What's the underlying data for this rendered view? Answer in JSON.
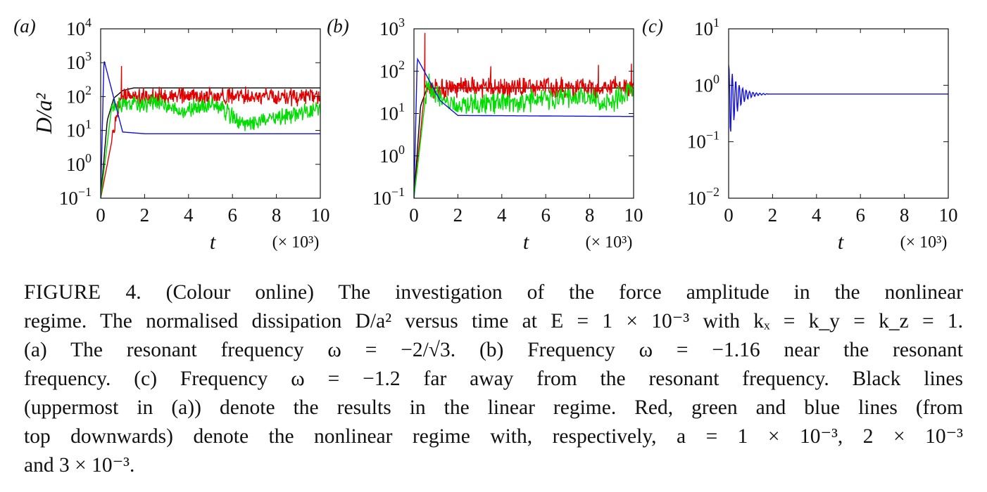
{
  "chart_data": [
    {
      "type": "line",
      "panel_label": "(a)",
      "ylabel": "D/a²",
      "xlabel": "t",
      "x_multiplier": "(× 10³)",
      "xlim": [
        0,
        10
      ],
      "xticks": [
        "0",
        "2",
        "4",
        "6",
        "8",
        "10"
      ],
      "yscale": "log",
      "ylim": [
        0.1,
        10000
      ],
      "yticks": [
        {
          "base": "10",
          "exp": "4"
        },
        {
          "base": "10",
          "exp": "3"
        },
        {
          "base": "10",
          "exp": "2"
        },
        {
          "base": "10",
          "exp": "1"
        },
        {
          "base": "10",
          "exp": "0"
        },
        {
          "base": "10",
          "exp": "−1"
        }
      ],
      "series": [
        {
          "color": "#000000",
          "kind": "saturating",
          "x": [
            0,
            0.3,
            0.6,
            1.0,
            1.5,
            10
          ],
          "y": [
            0.1,
            20,
            90,
            150,
            180,
            180
          ]
        },
        {
          "color": "#e00000",
          "kind": "noisy",
          "x": [
            0,
            0.9,
            10
          ],
          "y": [
            0.1,
            100,
            100
          ],
          "spikes": [
            [
              0.95,
              800
            ]
          ]
        },
        {
          "color": "#00dd00",
          "kind": "noisy",
          "x": [
            0,
            0.5,
            2.7,
            3.5,
            5.2,
            6.5,
            9.5,
            10
          ],
          "y": [
            0.1,
            50,
            70,
            35,
            60,
            14,
            40,
            45
          ]
        },
        {
          "color": "#1010e0",
          "kind": "settling",
          "x": [
            0,
            0.15,
            1.0,
            2.0,
            10
          ],
          "y": [
            0.1,
            1200,
            9,
            8,
            8
          ]
        }
      ]
    },
    {
      "type": "line",
      "panel_label": "(b)",
      "xlabel": "t",
      "x_multiplier": "(× 10³)",
      "xlim": [
        0,
        10
      ],
      "xticks": [
        "0",
        "2",
        "4",
        "6",
        "8",
        "10"
      ],
      "yscale": "log",
      "ylim": [
        0.1,
        1000
      ],
      "yticks": [
        {
          "base": "10",
          "exp": "3"
        },
        {
          "base": "10",
          "exp": "2"
        },
        {
          "base": "10",
          "exp": "1"
        },
        {
          "base": "10",
          "exp": "0"
        },
        {
          "base": "10",
          "exp": "−1"
        }
      ],
      "series": [
        {
          "color": "#000000",
          "kind": "saturating",
          "x": [
            0,
            0.3,
            0.6,
            1.0,
            10
          ],
          "y": [
            0.1,
            15,
            40,
            40,
            40
          ]
        },
        {
          "color": "#e00000",
          "kind": "noisy",
          "x": [
            0,
            0.5,
            10
          ],
          "y": [
            0.1,
            40,
            40
          ],
          "spikes": [
            [
              0.5,
              800
            ],
            [
              3.5,
              130
            ],
            [
              8.4,
              140
            ],
            [
              9.9,
              150
            ]
          ]
        },
        {
          "color": "#00dd00",
          "kind": "noisy",
          "x": [
            0,
            0.6,
            1.6,
            8.3,
            8.6,
            10
          ],
          "y": [
            0.1,
            50,
            15,
            25,
            15,
            35
          ]
        },
        {
          "color": "#1010e0",
          "kind": "settling",
          "x": [
            0,
            0.15,
            1.2,
            2.0,
            10
          ],
          "y": [
            0.1,
            200,
            20,
            9,
            8.5
          ]
        }
      ]
    },
    {
      "type": "line",
      "panel_label": "(c)",
      "xlabel": "t",
      "x_multiplier": "(× 10³)",
      "xlim": [
        0,
        10
      ],
      "xticks": [
        "0",
        "2",
        "4",
        "6",
        "8",
        "10"
      ],
      "yscale": "log",
      "ylim": [
        0.01,
        10
      ],
      "yticks": [
        {
          "base": "10",
          "exp": "1"
        },
        {
          "base": "10",
          "exp": "0"
        },
        {
          "base": "10",
          "exp": "−1"
        },
        {
          "base": "10",
          "exp": "−2"
        }
      ],
      "series": [
        {
          "color": "#1010e0",
          "kind": "damped_oscillation",
          "x": [
            0,
            2,
            10
          ],
          "y": [
            0.7,
            0.7,
            0.7
          ],
          "peak": 2.5,
          "trough": 0.09,
          "decay_until": 1.8
        }
      ]
    }
  ],
  "caption": {
    "line1": [
      "FIGURE",
      " 4. (Colour online) The investigation of the force amplitude in the nonlinear"
    ],
    "line2": "regime. The normalised dissipation D/a² versus time at E = 1 × 10⁻³ with kₓ = k_y = k_z = 1.",
    "line3": "(a) The resonant frequency ω = −2/√3. (b) Frequency ω = −1.16 near the resonant",
    "line4": "frequency. (c) Frequency ω = −1.2 far away from the resonant frequency. Black lines",
    "line5": "(uppermost in (a)) denote the results in the linear regime. Red, green and blue lines (from",
    "line6": "top downwards) denote the nonlinear regime with, respectively, a = 1 × 10⁻³, 2 × 10⁻³",
    "line7": "and 3 × 10⁻³."
  }
}
